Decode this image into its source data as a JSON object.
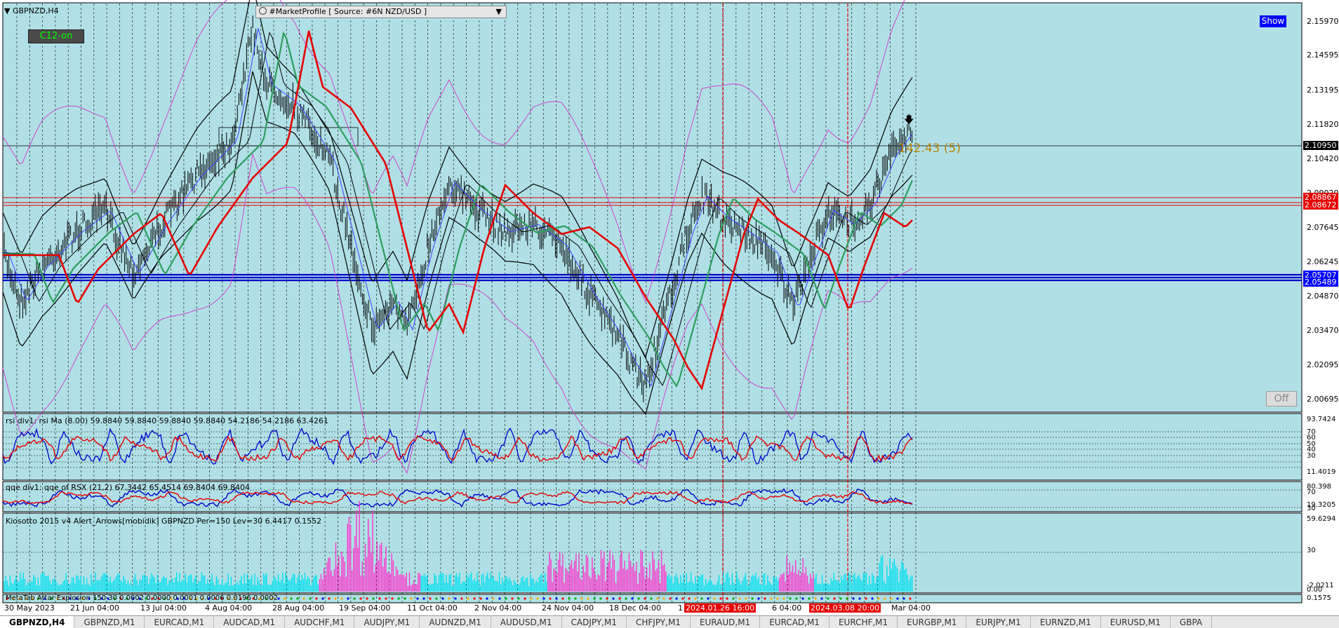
{
  "symbol_title": "GBPNZD,H4",
  "profile_header": "#MarketProfile [ Source: #6N NZD/USD ]",
  "c12_button": "C12-on",
  "show_button": "Show",
  "off_button": "Off",
  "fibo_label": "142.43 (5)",
  "price_scale": [
    "2.15970",
    "2.14595",
    "2.13195",
    "2.11820",
    "2.10420",
    "2.09020",
    "2.07645",
    "2.06245",
    "2.04870",
    "2.03470",
    "2.02095",
    "2.00695"
  ],
  "price_boxes": {
    "current": "2.10950",
    "red_upper": "2.08867",
    "red_lower": "2.08672",
    "blue_upper": "2.05707",
    "blue_lower": "2.05489"
  },
  "rsi": {
    "label": "rsi div1: rsi Ma (8.00) 59.8840 59.8840 59.8840 59.8840 54.2186 54.2186 63.4261",
    "scale": [
      "93.7424",
      "70",
      "60",
      "50",
      "40",
      "30",
      "11.4019"
    ]
  },
  "qqe": {
    "label": "qqe div1: qqe of RSX (21,2) 67.3442 65.4514 69.8404 69.8404",
    "scale": [
      "80.398",
      "70",
      "19.3205",
      "30"
    ]
  },
  "kio": {
    "label": "Kiosotto 2015 v4 Alert_Arrows[mobidik] GBPNZD Per=150 Lev=30 6.4417 0.1552",
    "scale": [
      "59.6294",
      "30",
      "-2.0211"
    ]
  },
  "bottom_pane": {
    "label": "MetaTab Attar Explosion 150 30 0.0002 0.0000 0.0001 0.0006 0.0196 0.0002",
    "scale": [
      "0.00",
      "0.1575"
    ]
  },
  "time_axis": [
    "30 May 2023",
    "21 Jun 04:00",
    "13 Jul 04:00",
    "4 Aug 04:00",
    "28 Aug 04:00",
    "19 Sep 04:00",
    "11 Oct 04:00",
    "2 Nov 04:00",
    "24 Nov 04:00",
    "18 Dec 04:00",
    "1",
    "6 04:00",
    "Mar 04:00"
  ],
  "time_badges": [
    "2024.01.26 16:00",
    "2024.03.08 20:00"
  ],
  "tabs": [
    "GBPNZD,H4",
    "GBPNZD,M1",
    "EURCAD,M1",
    "AUDCAD,M1",
    "AUDCHF,M1",
    "AUDJPY,M1",
    "AUDNZD,M1",
    "AUDUSD,M1",
    "CADJPY,M1",
    "CHFJPY,M1",
    "EURAUD,M1",
    "EURCAD,M1",
    "EURCHF,M1",
    "EURGBP,M1",
    "EURJPY,M1",
    "EURNZD,M1",
    "EURUSD,M1",
    "GBPA"
  ],
  "colors": {
    "pane_bg": "#b0e0e6",
    "red": "#e60000",
    "blue": "#0000cc",
    "green": "#2e9e5e",
    "magenta": "#cc44cc",
    "hist_cyan": "#00e0f0",
    "hist_magenta": "#ff33cc",
    "price_box_red": "#e60000",
    "price_box_blue": "#0000ff",
    "current_box": "#000000",
    "fibo": "#b8860b"
  }
}
